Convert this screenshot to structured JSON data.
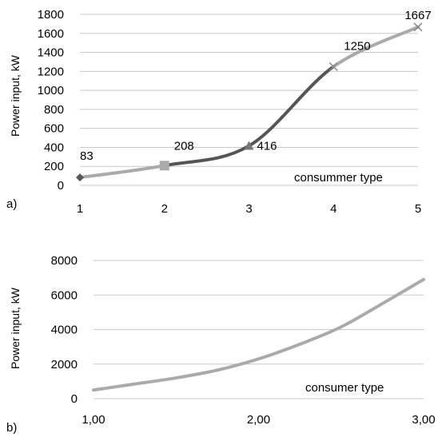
{
  "chart_data": [
    {
      "type": "line",
      "panel_label": "a)",
      "ylabel": "Power input, kW",
      "annotation": "consummer type",
      "x": [
        1,
        2,
        3,
        4,
        5
      ],
      "xticks": [
        "1",
        "2",
        "3",
        "4",
        "5"
      ],
      "ylim": [
        0,
        1800
      ],
      "yticks": [
        "0",
        "200",
        "400",
        "600",
        "800",
        "1000",
        "1200",
        "1400",
        "1600",
        "1800"
      ],
      "grid": true,
      "series": [
        {
          "values": [
            83,
            208,
            416,
            1250,
            1667
          ],
          "data_labels": [
            "83",
            "208",
            "416",
            "1250",
            "1667"
          ],
          "markers": [
            "diamond",
            "square",
            "triangle",
            "x",
            "x"
          ],
          "segment_colors": [
            "#aaaaaa",
            "#555555",
            "#555555",
            "#aaaaaa"
          ]
        }
      ]
    },
    {
      "type": "line",
      "panel_label": "b)",
      "ylabel": "Power input, kW",
      "annotation": "consumer type",
      "x": [
        1.0,
        1.25,
        1.5,
        1.75,
        2.0,
        2.25,
        2.5,
        2.75,
        3.0
      ],
      "xticks": [
        "1,00",
        "2,00",
        "3,00"
      ],
      "ylim": [
        0,
        8000
      ],
      "yticks": [
        "0",
        "2000",
        "4000",
        "6000",
        "8000"
      ],
      "grid": true,
      "series": [
        {
          "values": [
            500,
            850,
            1200,
            1650,
            2300,
            3150,
            4150,
            5500,
            6900
          ],
          "color": "#aaaaaa"
        }
      ]
    }
  ]
}
